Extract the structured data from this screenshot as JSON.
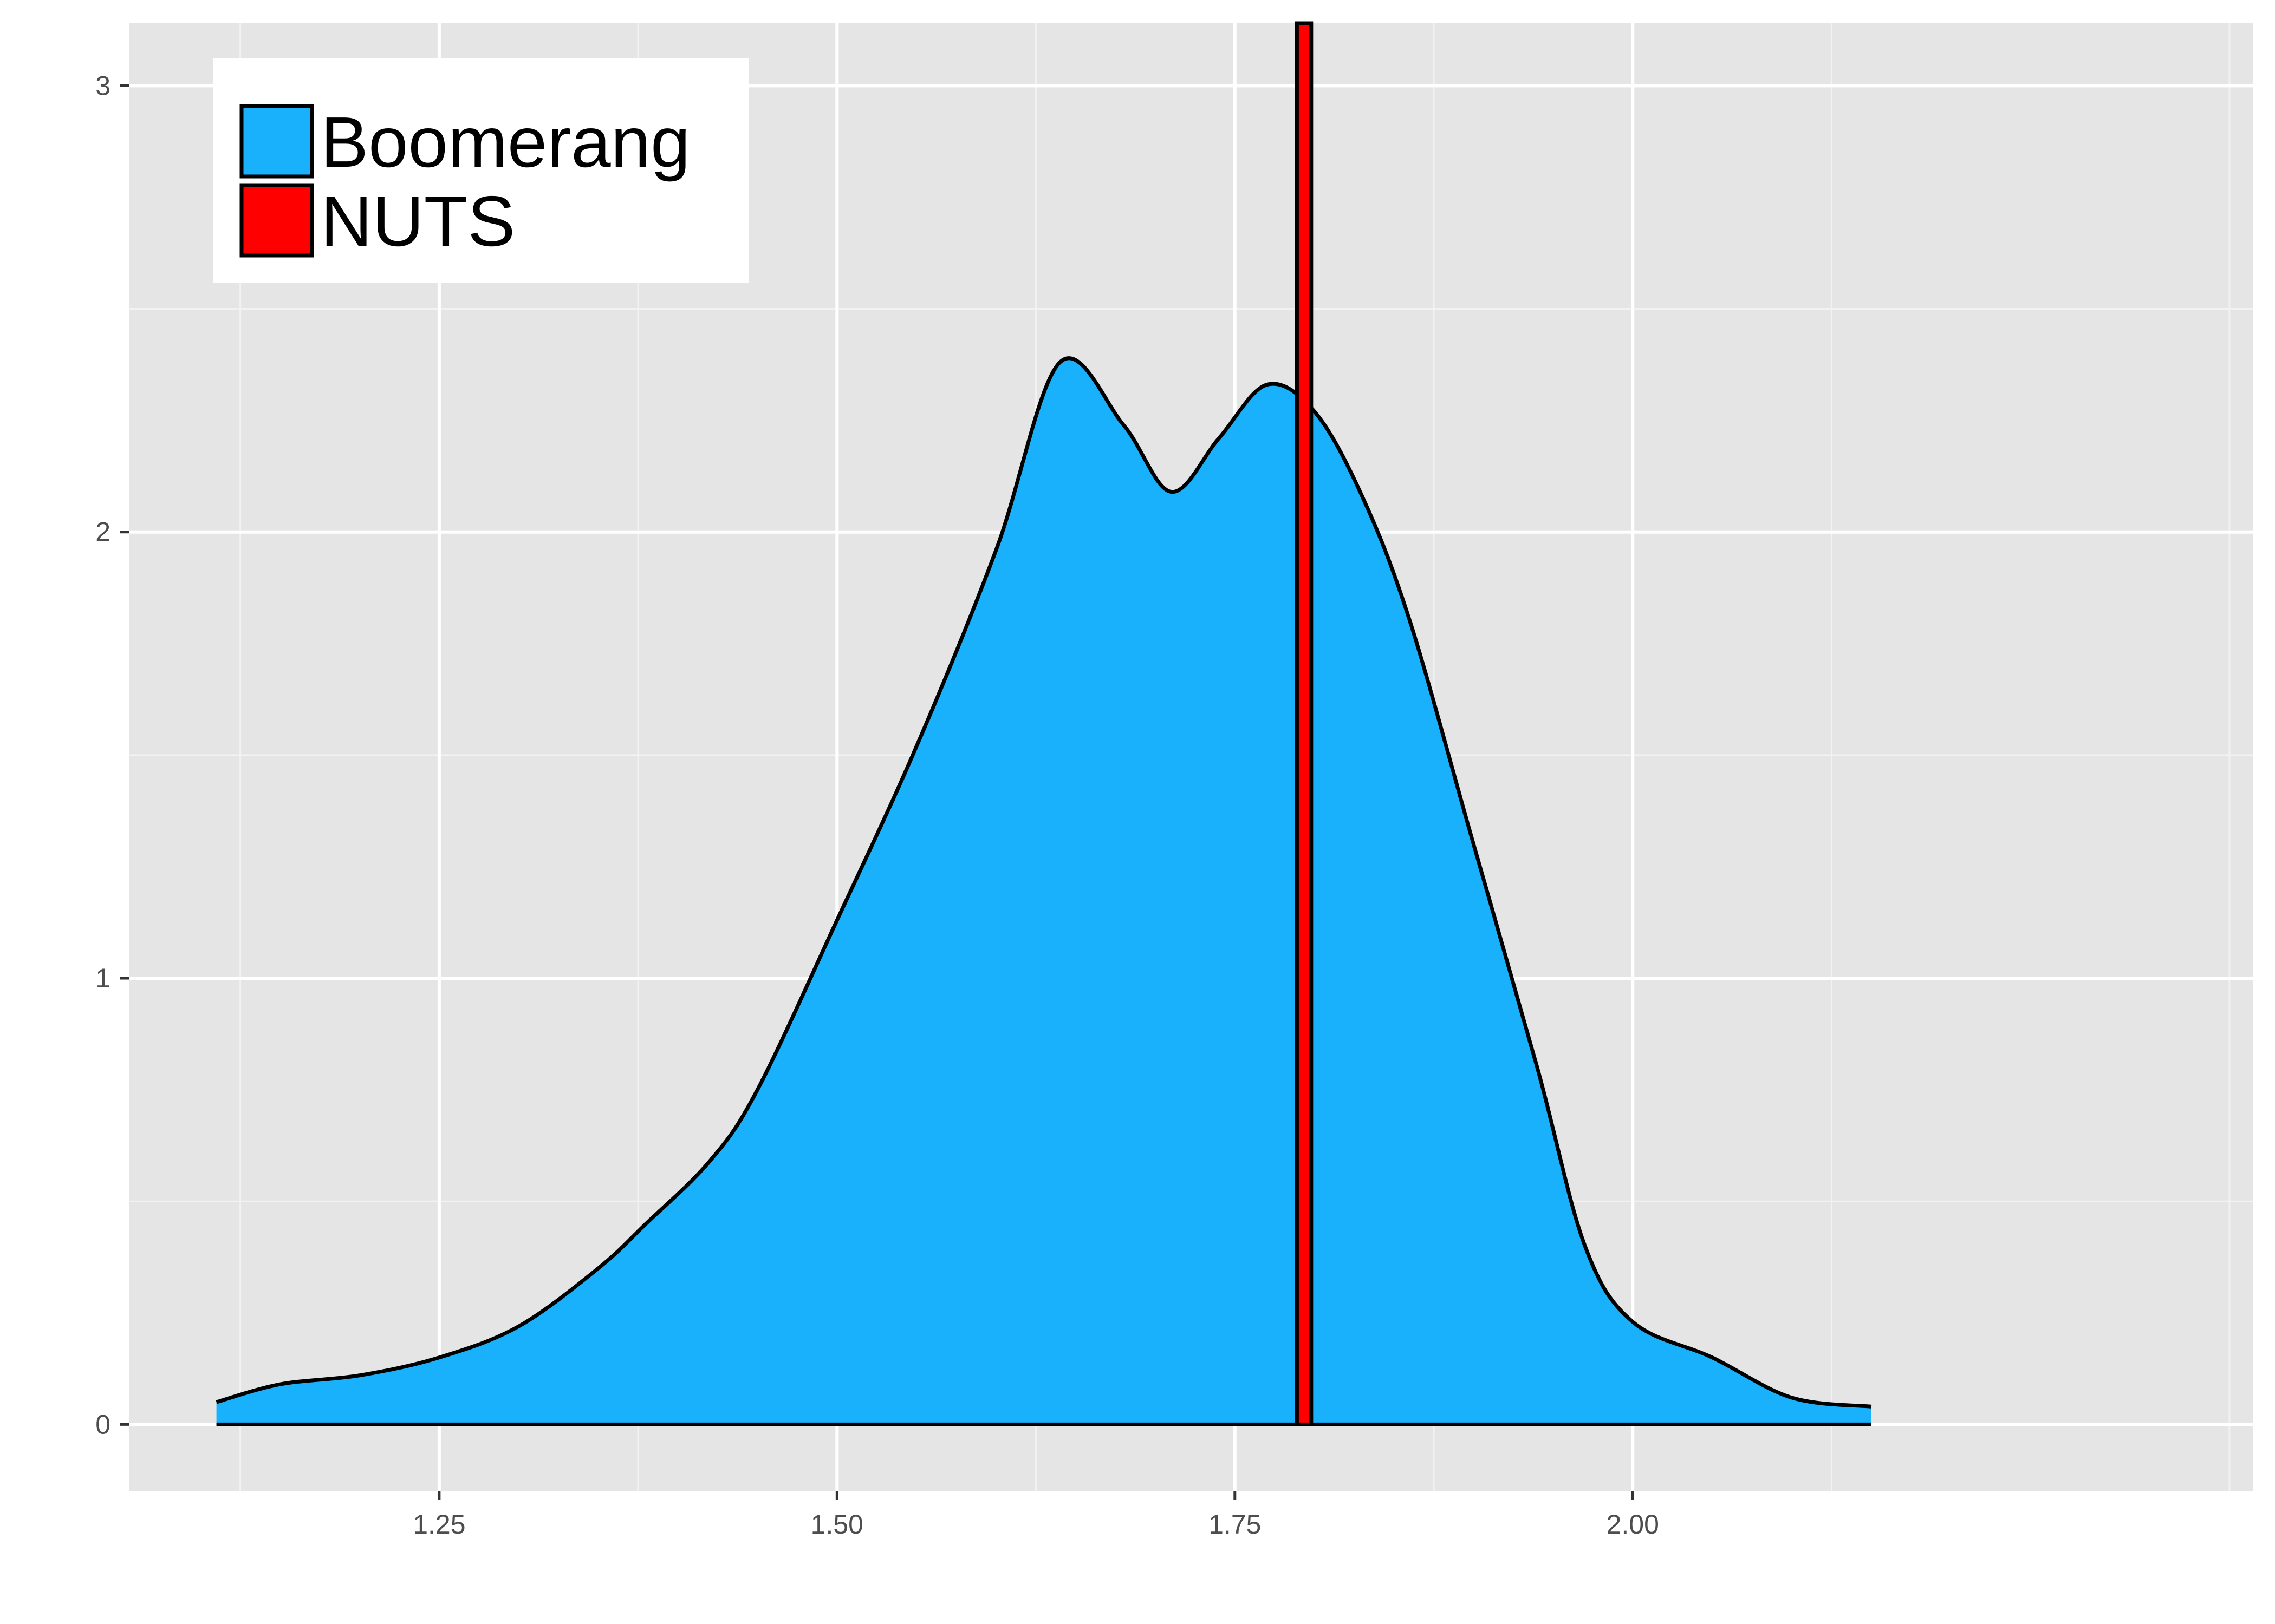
{
  "chart_data": {
    "type": "area",
    "title": "",
    "xlabel": "",
    "ylabel": "",
    "xlim": [
      1.055,
      2.39
    ],
    "ylim": [
      -0.15,
      3.14
    ],
    "x_ticks": [
      1.25,
      1.5,
      1.75,
      2.0
    ],
    "x_tick_labels": [
      "1.25",
      "1.50",
      "1.75",
      "2.00"
    ],
    "y_ticks": [
      0,
      1,
      2,
      3
    ],
    "y_tick_labels": [
      "0",
      "1",
      "2",
      "3"
    ],
    "grid": true,
    "legend": {
      "position": "top-left",
      "items": [
        {
          "label": "Boomerang",
          "color": "#19B0FC"
        },
        {
          "label": "NUTS",
          "color": "#FF0000"
        }
      ]
    },
    "series": [
      {
        "name": "Boomerang",
        "kind": "density",
        "color": "#19B0FC",
        "x": [
          1.11,
          1.15,
          1.2,
          1.25,
          1.3,
          1.35,
          1.38,
          1.42,
          1.45,
          1.5,
          1.55,
          1.6,
          1.64,
          1.68,
          1.71,
          1.74,
          1.77,
          1.8,
          1.83,
          1.86,
          1.9,
          1.94,
          1.97,
          2.0,
          2.05,
          2.1,
          2.15
        ],
        "y": [
          0.05,
          0.09,
          0.11,
          0.15,
          0.22,
          0.35,
          0.45,
          0.59,
          0.75,
          1.13,
          1.52,
          1.96,
          2.38,
          2.24,
          2.09,
          2.21,
          2.33,
          2.27,
          2.08,
          1.8,
          1.3,
          0.8,
          0.4,
          0.23,
          0.15,
          0.06,
          0.04
        ]
      },
      {
        "name": "NUTS",
        "kind": "vertical-bar",
        "color": "#FF0000",
        "x_range": [
          1.789,
          1.798
        ],
        "y_max": 3.14
      }
    ]
  }
}
